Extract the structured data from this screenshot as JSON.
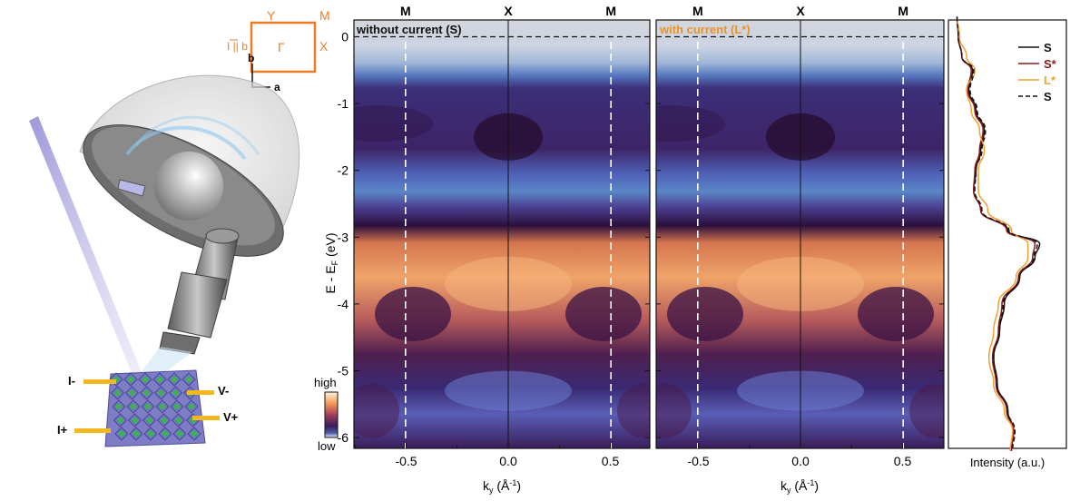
{
  "left_panel": {
    "bz": {
      "Y": "Y",
      "M": "M",
      "Gamma": "Γ",
      "X": "X",
      "current_label": "I || b"
    },
    "axes": {
      "b": "b",
      "a": "a"
    },
    "contacts": {
      "i_minus": "I-",
      "i_plus": "I+",
      "v_minus": "V-",
      "v_plus": "V+"
    }
  },
  "panels": [
    {
      "label": "without current (S)",
      "label_color": "#111111"
    },
    {
      "label": "with current (L*)",
      "label_color": "#e8922a"
    }
  ],
  "top_labels": [
    "M",
    "X",
    "M"
  ],
  "y_axis": {
    "label": "E - E",
    "label_sub": "F",
    "label_unit": " (eV)",
    "ticks": [
      "0",
      "-1",
      "-2",
      "-3",
      "-4",
      "-5",
      "-6"
    ],
    "values": [
      0,
      -1,
      -2,
      -3,
      -4,
      -5,
      -6
    ]
  },
  "x_axis": {
    "label": "k",
    "label_sub": "y",
    "label_unit": " (Å",
    "label_exp": "-1",
    "label_close": ")",
    "ticks": [
      "-0.5",
      "0.0",
      "0.5"
    ],
    "values": [
      -0.5,
      0.0,
      0.5
    ]
  },
  "colorbar": {
    "high": "high",
    "low": "low"
  },
  "edc": {
    "xlabel": "Intensity (a.u.)",
    "legend": [
      {
        "name": "S",
        "color": "#111111",
        "dash": false
      },
      {
        "name": "S*",
        "color": "#8b1a1a",
        "dash": false
      },
      {
        "name": "L*",
        "color": "#f0a030",
        "dash": false
      },
      {
        "name": "S",
        "color": "#111111",
        "dash": true
      }
    ]
  },
  "chart_data": {
    "type": "line",
    "xlabel": "Intensity (a.u.)",
    "ylabel": "E - EF (eV)",
    "ylim": [
      -6.2,
      0.3
    ],
    "series": [
      {
        "name": "S",
        "energy": [
          0.3,
          0,
          -0.3,
          -0.5,
          -0.8,
          -1.1,
          -1.4,
          -1.7,
          -2.0,
          -2.3,
          -2.6,
          -2.9,
          -3.1,
          -3.3,
          -3.6,
          -4.0,
          -4.4,
          -4.8,
          -5.2,
          -5.6,
          -5.9,
          -6.2
        ],
        "intensity": [
          0.02,
          0.03,
          0.06,
          0.15,
          0.12,
          0.18,
          0.25,
          0.22,
          0.18,
          0.16,
          0.22,
          0.45,
          0.72,
          0.68,
          0.55,
          0.42,
          0.38,
          0.33,
          0.36,
          0.45,
          0.5,
          0.48
        ]
      },
      {
        "name": "S*",
        "energy": [
          0.3,
          0,
          -0.3,
          -0.5,
          -0.8,
          -1.1,
          -1.4,
          -1.7,
          -2.0,
          -2.3,
          -2.6,
          -2.9,
          -3.1,
          -3.3,
          -3.6,
          -4.0,
          -4.4,
          -4.8,
          -5.2,
          -5.6,
          -5.9,
          -6.2
        ],
        "intensity": [
          0.02,
          0.03,
          0.06,
          0.14,
          0.11,
          0.17,
          0.24,
          0.21,
          0.17,
          0.16,
          0.22,
          0.44,
          0.68,
          0.66,
          0.54,
          0.4,
          0.37,
          0.32,
          0.35,
          0.44,
          0.5,
          0.48
        ]
      },
      {
        "name": "L*",
        "energy": [
          0.3,
          0,
          -0.3,
          -0.5,
          -0.8,
          -1.1,
          -1.4,
          -1.7,
          -2.0,
          -2.3,
          -2.6,
          -2.9,
          -3.1,
          -3.3,
          -3.6,
          -4.0,
          -4.4,
          -4.8,
          -5.2,
          -5.6,
          -5.9,
          -6.2
        ],
        "intensity": [
          0.02,
          0.04,
          0.1,
          0.17,
          0.1,
          0.14,
          0.21,
          0.25,
          0.2,
          0.2,
          0.28,
          0.48,
          0.62,
          0.62,
          0.52,
          0.37,
          0.33,
          0.29,
          0.33,
          0.42,
          0.49,
          0.47
        ]
      },
      {
        "name": "S",
        "energy": [
          0.3,
          0,
          -0.3,
          -0.5,
          -0.8,
          -1.1,
          -1.4,
          -1.7,
          -2.0,
          -2.3,
          -2.6,
          -2.9,
          -3.1,
          -3.3,
          -3.6,
          -4.0,
          -4.4,
          -4.8,
          -5.2,
          -5.6,
          -5.9,
          -6.2
        ],
        "intensity": [
          0.02,
          0.03,
          0.06,
          0.16,
          0.13,
          0.19,
          0.26,
          0.23,
          0.18,
          0.17,
          0.23,
          0.46,
          0.7,
          0.67,
          0.55,
          0.41,
          0.38,
          0.33,
          0.36,
          0.45,
          0.51,
          0.49
        ]
      }
    ]
  },
  "colors": {
    "bz_orange": "#ee7d22",
    "frame": "#111111"
  }
}
